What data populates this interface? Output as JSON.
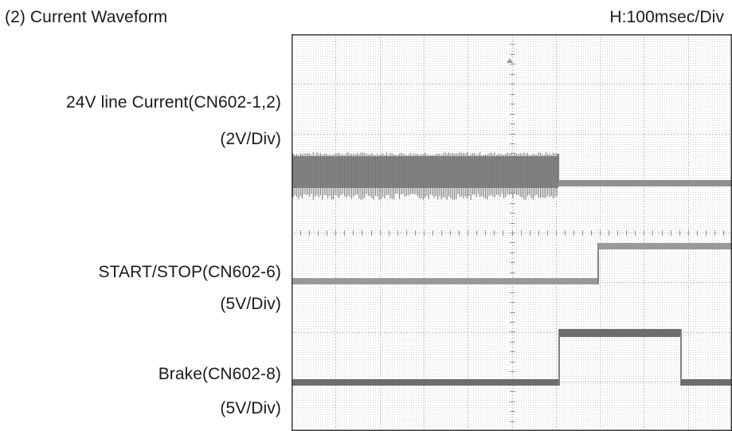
{
  "title": "(2) Current Waveform",
  "time_scale": "H:100msec/Div",
  "channels": [
    {
      "name": "24V line Current(CN602-1,2)",
      "scale": "(2V/Div)"
    },
    {
      "name": "START/STOP(CN602-6)",
      "scale": "(5V/Div)"
    },
    {
      "name": "Brake(CN602-8)",
      "scale": "(5V/Div)"
    }
  ],
  "colors": {
    "trace": "#7f7f7f",
    "grid": "#bdbdbd",
    "frame": "#3a3a3a",
    "text": "#1a1a1a"
  }
}
